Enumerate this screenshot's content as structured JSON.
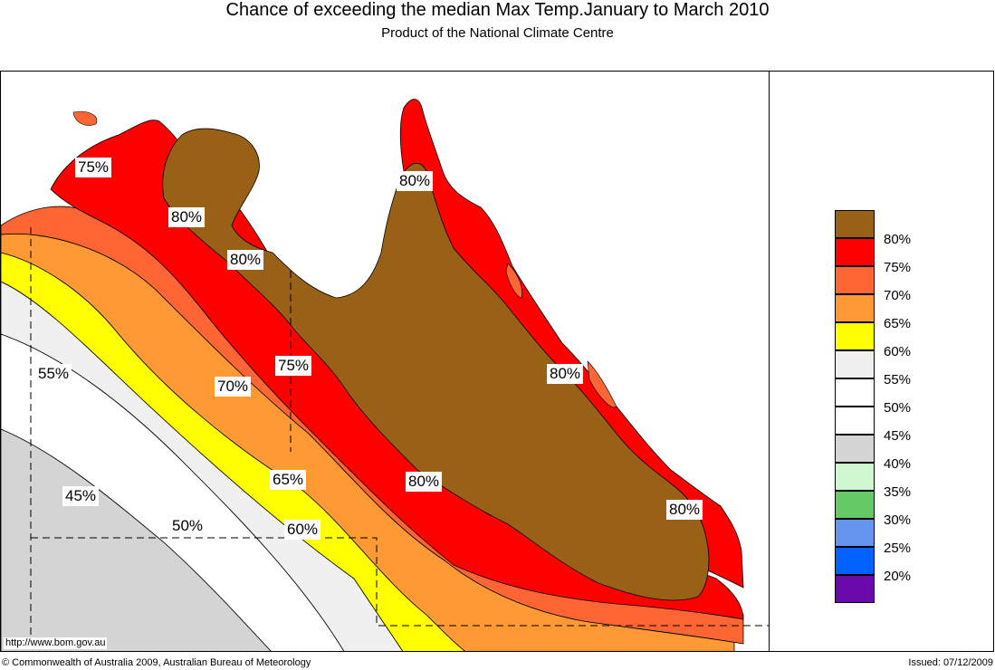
{
  "header": {
    "title": "Chance of exceeding the median Max Temp.January to March 2010",
    "subtitle": "Product of the National Climate Centre"
  },
  "map": {
    "region": "Queensland",
    "zone_colors": {
      "20-25": "#6a0aab",
      "25-30": "#0063ff",
      "30-35": "#6495ed",
      "35-40": "#64c864",
      "40-45": "#d0f8d0",
      "45-50": "#d4d4d4",
      "50-55": "#ffffff",
      "55-60": "#f0f0f0",
      "60-65": "#ffff00",
      "65-70": "#ff9933",
      "70-75": "#ff6633",
      "75-80": "#ff0000",
      "80+": "#996116"
    },
    "contour_labels": [
      "75%",
      "80%",
      "80%",
      "80%",
      "80%",
      "75%",
      "70%",
      "55%",
      "80%",
      "65%",
      "80%",
      "45%",
      "50%",
      "60%"
    ],
    "url": "http://www.bom.gov.au"
  },
  "legend": {
    "items": [
      {
        "label": "80%",
        "color": "#996116"
      },
      {
        "label": "75%",
        "color": "#ff0000"
      },
      {
        "label": "70%",
        "color": "#ff6633"
      },
      {
        "label": "65%",
        "color": "#ff9933"
      },
      {
        "label": "60%",
        "color": "#ffff00"
      },
      {
        "label": "55%",
        "color": "#f0f0f0"
      },
      {
        "label": "50%",
        "color": "#ffffff"
      },
      {
        "label": "45%",
        "color": "#ffffff"
      },
      {
        "label": "40%",
        "color": "#d4d4d4"
      },
      {
        "label": "35%",
        "color": "#d0f8d0"
      },
      {
        "label": "30%",
        "color": "#64c864"
      },
      {
        "label": "25%",
        "color": "#6495ed"
      },
      {
        "label": "20%",
        "color": "#0063ff"
      }
    ],
    "bottom_color": "#6a0aab"
  },
  "footer": {
    "copyright": "© Commonwealth of Australia 2009, Australian Bureau of Meteorology",
    "issued": "Issued: 07/12/2009"
  }
}
